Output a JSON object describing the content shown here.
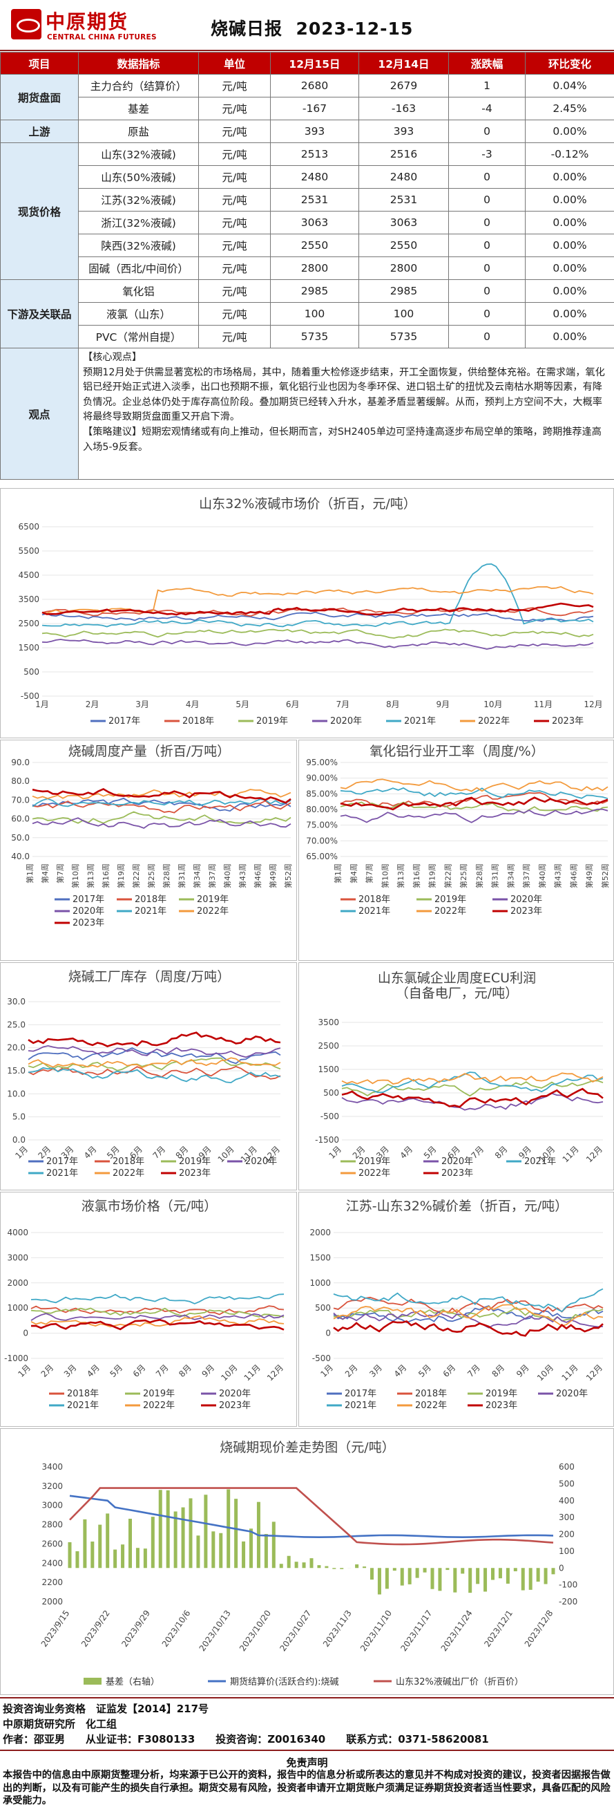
{
  "header": {
    "logo_text_cn": "中原期货",
    "logo_text_en": "CENTRAL CHINA FUTURES",
    "title": "烧碱日报",
    "date": "2023-12-15"
  },
  "table": {
    "columns": [
      "项目",
      "数据指标",
      "单位",
      "12月15日",
      "12月14日",
      "涨跌幅",
      "环比变化"
    ],
    "groups": [
      {
        "name": "期货盘面",
        "rows": [
          {
            "indicator": "主力合约（结算价）",
            "unit": "元/吨",
            "d1": "2680",
            "d2": "2679",
            "chg": "1",
            "pct": "0.04%"
          },
          {
            "indicator": "基差",
            "unit": "元/吨",
            "d1": "-167",
            "d2": "-163",
            "chg": "-4",
            "pct": "2.45%"
          }
        ]
      },
      {
        "name": "上游",
        "rows": [
          {
            "indicator": "原盐",
            "unit": "元/吨",
            "d1": "393",
            "d2": "393",
            "chg": "0",
            "pct": "0.00%"
          }
        ]
      },
      {
        "name": "现货价格",
        "rows": [
          {
            "indicator": "山东(32%液碱)",
            "unit": "元/吨",
            "d1": "2513",
            "d2": "2516",
            "chg": "-3",
            "pct": "-0.12%"
          },
          {
            "indicator": "山东(50%液碱)",
            "unit": "元/吨",
            "d1": "2480",
            "d2": "2480",
            "chg": "0",
            "pct": "0.00%"
          },
          {
            "indicator": "江苏(32%液碱)",
            "unit": "元/吨",
            "d1": "2531",
            "d2": "2531",
            "chg": "0",
            "pct": "0.00%"
          },
          {
            "indicator": "浙江(32%液碱)",
            "unit": "元/吨",
            "d1": "3063",
            "d2": "3063",
            "chg": "0",
            "pct": "0.00%"
          },
          {
            "indicator": "陕西(32%液碱)",
            "unit": "元/吨",
            "d1": "2550",
            "d2": "2550",
            "chg": "0",
            "pct": "0.00%"
          },
          {
            "indicator": "固碱（西北/中间价）",
            "unit": "元/吨",
            "d1": "2800",
            "d2": "2800",
            "chg": "0",
            "pct": "0.00%"
          }
        ]
      },
      {
        "name": "下游及关联品",
        "rows": [
          {
            "indicator": "氧化铝",
            "unit": "元/吨",
            "d1": "2985",
            "d2": "2985",
            "chg": "0",
            "pct": "0.00%"
          },
          {
            "indicator": "液氯（山东）",
            "unit": "元/吨",
            "d1": "100",
            "d2": "100",
            "chg": "0",
            "pct": "0.00%"
          },
          {
            "indicator": "PVC（常州自提）",
            "unit": "元/吨",
            "d1": "5735",
            "d2": "5735",
            "chg": "0",
            "pct": "0.00%"
          }
        ]
      }
    ],
    "view": {
      "label": "观点",
      "core_head": "【核心观点】",
      "core_text": "预期12月处于供需显著宽松的市场格局，其中，随着重大检修逐步结束，开工全面恢复，供给整体充裕。在需求端，氧化铝已经开始正式进入淡季，出口也预期不振，氧化铝行业也因为冬季环保、进口铝土矿的扭忧及云南枯水期等因素，有降负情况。企业总体仍处于库存高位阶段。叠加期货已经转入升水，基差矛盾显著缓解。从而，预判上方空间不大，大概率将最终导致期货盘面重又开启下滑。",
      "strategy_head": "【策略建议】",
      "strategy_text": "短期宏观情绪或有向上推动，但长期而言，对SH2405单边可坚持逢高逐步布局空单的策略，跨期推荐逢高入场5-9反套。"
    }
  },
  "charts": {
    "c1": {
      "title": "山东32%液碱市场价（折百，元/吨）",
      "yticks": [
        "6500",
        "5500",
        "4500",
        "3500",
        "2500",
        "1500",
        "500",
        "-500"
      ],
      "xticks": [
        "1月",
        "2月",
        "3月",
        "4月",
        "5月",
        "6月",
        "7月",
        "8月",
        "9月",
        "10月",
        "11月",
        "12月"
      ],
      "legend": [
        "2017年",
        "2018年",
        "2019年",
        "2020年",
        "2021年",
        "2022年",
        "2023年"
      ]
    },
    "c2": {
      "title": "烧碱周度产量（折百/万吨）",
      "yticks": [
        "90.0",
        "80.0",
        "70.0",
        "60.0",
        "50.0",
        "40.0"
      ],
      "xticks": [
        "第1周",
        "第4周",
        "第7周",
        "第10周",
        "第13周",
        "第16周",
        "第19周",
        "第22周",
        "第25周",
        "第28周",
        "第31周",
        "第34周",
        "第37周",
        "第40周",
        "第43周",
        "第46周",
        "第49周",
        "第52周"
      ],
      "legend": [
        "2017年",
        "2018年",
        "2019年",
        "2020年",
        "2021年",
        "2022年",
        "2023年"
      ]
    },
    "c3": {
      "title": "氧化铝行业开工率（周度/%）",
      "yticks": [
        "95.00%",
        "90.00%",
        "85.00%",
        "80.00%",
        "75.00%",
        "70.00%",
        "65.00%"
      ],
      "xticks": [
        "第1周",
        "第4周",
        "第7周",
        "第10周",
        "第13周",
        "第16周",
        "第19周",
        "第22周",
        "第25周",
        "第28周",
        "第31周",
        "第34周",
        "第37周",
        "第40周",
        "第43周",
        "第46周",
        "第49周",
        "第52周"
      ],
      "legend": [
        "2018年",
        "2019年",
        "2020年",
        "2021年",
        "2022年",
        "2023年"
      ]
    },
    "c4": {
      "title": "烧碱工厂库存（周度/万吨）",
      "yticks": [
        "30.0",
        "25.0",
        "20.0",
        "15.0",
        "10.0",
        "5.0",
        "0.0"
      ],
      "xticks": [
        "1月",
        "2月",
        "3月",
        "4月",
        "5月",
        "6月",
        "7月",
        "8月",
        "9月",
        "10月",
        "11月",
        "12月"
      ],
      "legend": [
        "2017年",
        "2018年",
        "2019年",
        "2020年",
        "2021年",
        "2022年",
        "2023年"
      ]
    },
    "c5": {
      "title": "山东氯碱企业周度ECU利润",
      "title2": "（自备电厂，元/吨）",
      "yticks": [
        "3500",
        "2500",
        "1500",
        "500",
        "-500",
        "-1500"
      ],
      "xticks": [
        "1月",
        "2月",
        "3月",
        "4月",
        "5月",
        "6月",
        "7月",
        "8月",
        "9月",
        "10月",
        "11月",
        "12月"
      ],
      "legend": [
        "2019年",
        "2020年",
        "2021年",
        "2022年",
        "2023年"
      ]
    },
    "c6": {
      "title": "液氯市场价格（元/吨）",
      "yticks": [
        "4000",
        "3000",
        "2000",
        "1000",
        "0",
        "-1000"
      ],
      "xticks": [
        "1月",
        "2月",
        "3月",
        "4月",
        "5月",
        "6月",
        "7月",
        "8月",
        "9月",
        "10月",
        "11月",
        "12月"
      ],
      "legend": [
        "2018年",
        "2019年",
        "2020年",
        "2021年",
        "2022年",
        "2023年"
      ]
    },
    "c7": {
      "title": "江苏-山东32%碱价差（折百，元/吨）",
      "yticks": [
        "2000",
        "1500",
        "1000",
        "500",
        "0",
        "-500"
      ],
      "xticks": [
        "1月",
        "2月",
        "3月",
        "4月",
        "5月",
        "6月",
        "7月",
        "8月",
        "9月",
        "10月",
        "11月",
        "12月"
      ],
      "legend": [
        "2017年",
        "2018年",
        "2019年",
        "2020年",
        "2021年",
        "2022年",
        "2023年"
      ]
    },
    "c8": {
      "title": "烧碱期现价差走势图（元/吨）",
      "yticks_left": [
        "3400",
        "3200",
        "3000",
        "2800",
        "2600",
        "2400",
        "2200",
        "2000"
      ],
      "yticks_right": [
        "600",
        "500",
        "400",
        "300",
        "200",
        "100",
        "0",
        "-100",
        "-200"
      ],
      "xticks": [
        "2023/9/15",
        "2023/9/22",
        "2023/9/29",
        "2023/10/6",
        "2023/10/13",
        "2023/10/20",
        "2023/10/27",
        "2023/11/3",
        "2023/11/10",
        "2023/11/17",
        "2023/11/24",
        "2023/12/1",
        "2023/12/8"
      ],
      "legend": [
        "基差（右轴）",
        "期货结算价(活跃合约):烧碱",
        "山东32%液碱出厂价（折百价）"
      ]
    }
  },
  "series_colors": {
    "2017年": "#4f6fbf",
    "2018年": "#d9533c",
    "2019年": "#9bbb59",
    "2020年": "#7a53a8",
    "2021年": "#3fa8c6",
    "2022年": "#f39a3c",
    "2023年": "#c00000"
  },
  "footer": {
    "line1": "投资咨询业务资格　证监发【2014】217号",
    "line2": "中原期货研究所　化工组",
    "line3": "作者：邵亚男　　从业证书：F3080133　　投资咨询：Z0016340　　联系方式：0371-58620081",
    "disclaimer_title": "免责声明",
    "disclaimer": "本报告中的信息由中原期货整理分析，均来源于已公开的资料，报告中的信息分析或所表达的意见并不构成对投资的建议，投资者因据报告做出的判断，以及有可能产生的损失自行承担。期货交易有风险，投资者申请开立期货账户须满足证券期货投资者适当性要求，具备匹配的风险承受能力。"
  }
}
